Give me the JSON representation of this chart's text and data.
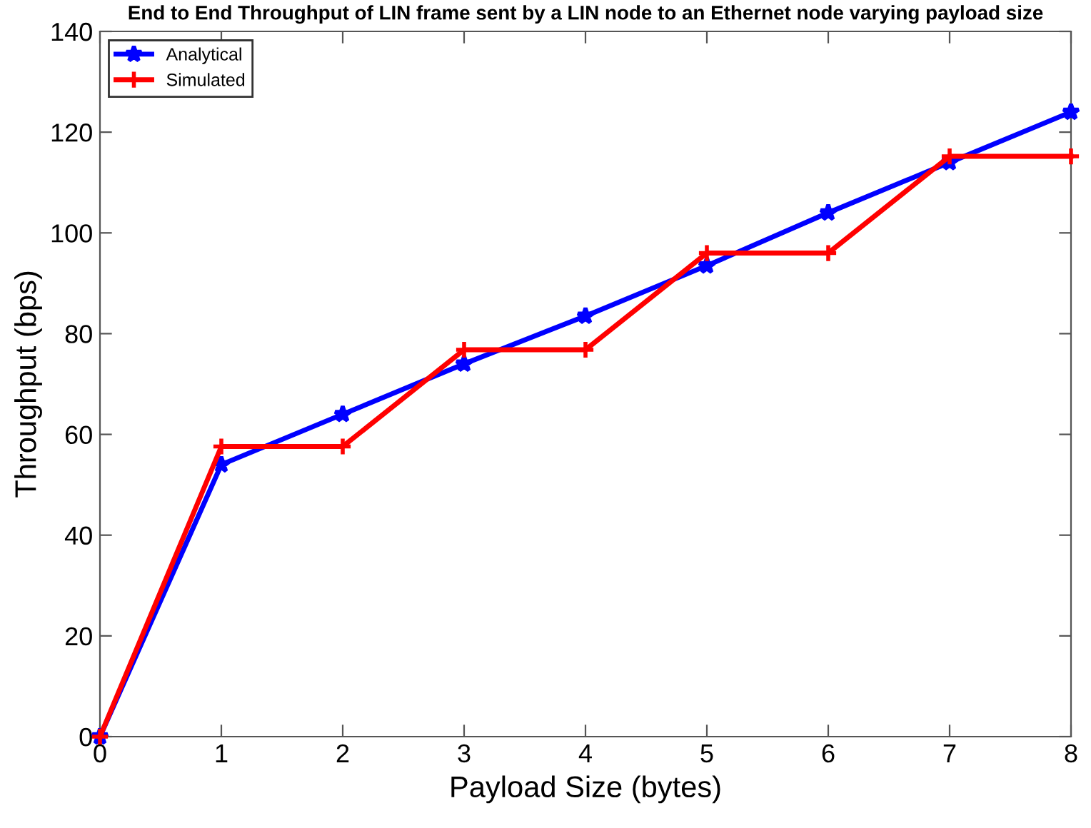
{
  "chart_data": {
    "type": "line",
    "title": "End to End Throughput of LIN frame sent by a LIN node to an Ethernet node varying payload size",
    "xlabel": "Payload Size (bytes)",
    "ylabel": "Throughput (bps)",
    "x": [
      0,
      1,
      2,
      3,
      4,
      5,
      6,
      7,
      8
    ],
    "series": [
      {
        "name": "Analytical",
        "color": "#0000ff",
        "marker": "star",
        "values": [
          0,
          54,
          64,
          74,
          83.5,
          93.5,
          104,
          114,
          124
        ]
      },
      {
        "name": "Simulated",
        "color": "#ff0000",
        "marker": "cross",
        "values": [
          0,
          57.6,
          57.6,
          76.8,
          76.8,
          96,
          96,
          115.2,
          115.2
        ]
      }
    ],
    "xlim": [
      0,
      8
    ],
    "xticks": [
      0,
      1,
      2,
      3,
      4,
      5,
      6,
      7,
      8
    ],
    "ylim": [
      0,
      140
    ],
    "yticks": [
      0,
      20,
      40,
      60,
      80,
      100,
      120,
      140
    ],
    "grid": false,
    "legend": "top left",
    "line_style": "solid"
  }
}
